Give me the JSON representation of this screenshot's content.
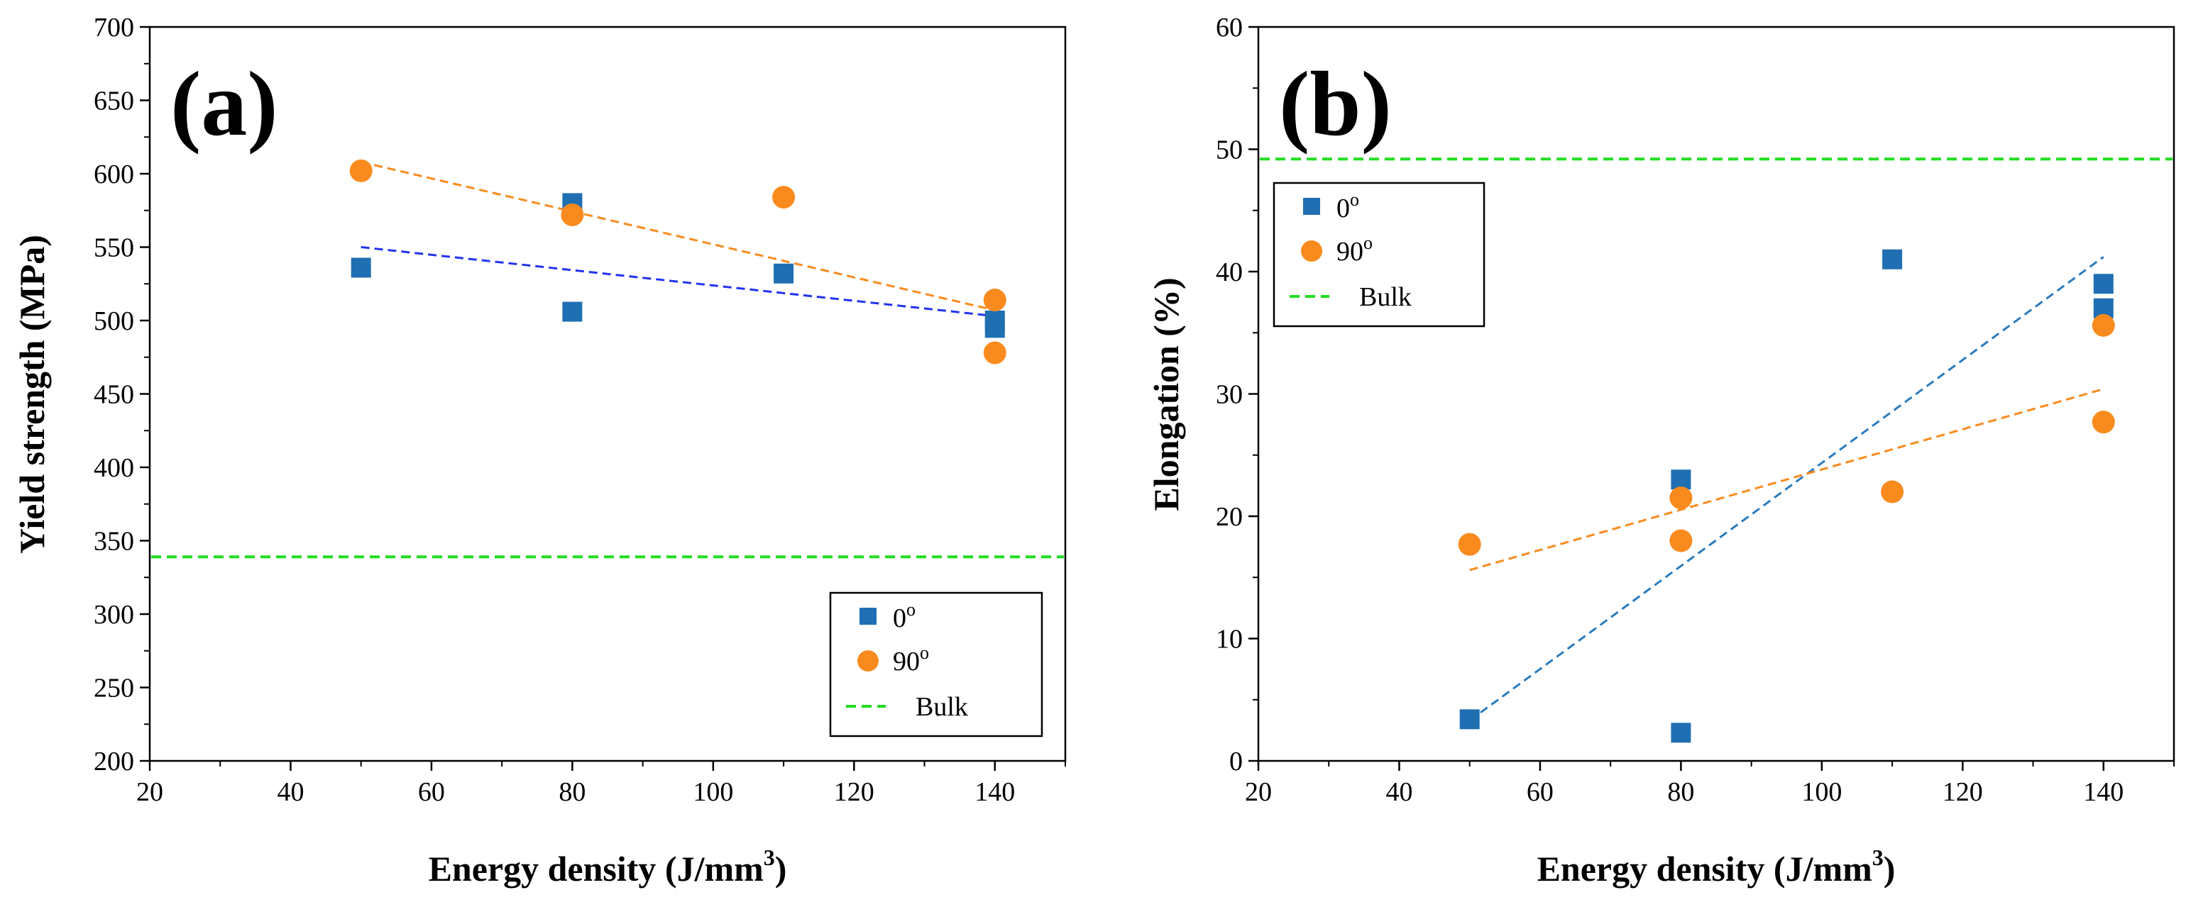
{
  "figure": {
    "background": "#ffffff",
    "colors": {
      "series_0": "#1f6fb2",
      "series_90": "#f98b1e",
      "bulk": "#22dd22",
      "fit_0_a": "#2233ee",
      "fit_0_b": "#2a7bbf",
      "fit_90": "#f98b1e"
    }
  },
  "chart_data": [
    {
      "panel_label": "(a)",
      "type": "scatter",
      "xlabel": "Energy density (J/mm",
      "xlabel_sup": "3",
      "xlabel_end": ")",
      "ylabel": "Yield strength (MPa)",
      "xlim": [
        20,
        150
      ],
      "ylim": [
        200,
        700
      ],
      "xticks": [
        20,
        40,
        60,
        80,
        100,
        120,
        140
      ],
      "yticks": [
        200,
        250,
        300,
        350,
        400,
        450,
        500,
        550,
        600,
        650,
        700
      ],
      "series": [
        {
          "name": "0",
          "name_sup": "o",
          "marker": "square",
          "color": "#1f6fb2",
          "x": [
            50,
            80,
            80,
            110,
            140,
            140
          ],
          "y": [
            536,
            506,
            580,
            532,
            500,
            495
          ]
        },
        {
          "name": "90",
          "name_sup": "o",
          "marker": "circle",
          "color": "#f98b1e",
          "x": [
            50,
            80,
            110,
            140,
            140
          ],
          "y": [
            602,
            572,
            584,
            514,
            478
          ]
        }
      ],
      "fits": [
        {
          "series": "0",
          "color": "#2233ee",
          "x": [
            50,
            140
          ],
          "y": [
            550,
            503
          ]
        },
        {
          "series": "90",
          "color": "#f98b1e",
          "x": [
            50,
            140
          ],
          "y": [
            608,
            507
          ]
        }
      ],
      "reference_lines": [
        {
          "name": "Bulk",
          "color": "#22dd22",
          "y": 339
        }
      ],
      "legend": {
        "position": "bottom-right",
        "entries": [
          "0",
          "90",
          "Bulk"
        ]
      }
    },
    {
      "panel_label": "(b)",
      "type": "scatter",
      "xlabel": "Energy density (J/mm",
      "xlabel_sup": "3",
      "xlabel_end": ")",
      "ylabel": "Elongation (%)",
      "xlim": [
        20,
        150
      ],
      "ylim": [
        0,
        60
      ],
      "xticks": [
        20,
        40,
        60,
        80,
        100,
        120,
        140
      ],
      "yticks": [
        0,
        10,
        20,
        30,
        40,
        50,
        60
      ],
      "series": [
        {
          "name": "0",
          "name_sup": "o",
          "marker": "square",
          "color": "#1f6fb2",
          "x": [
            50,
            80,
            80,
            110,
            140,
            140
          ],
          "y": [
            3.4,
            2.3,
            23,
            41,
            39,
            37
          ]
        },
        {
          "name": "90",
          "name_sup": "o",
          "marker": "circle",
          "color": "#f98b1e",
          "x": [
            50,
            80,
            80,
            110,
            140,
            140
          ],
          "y": [
            17.7,
            21.5,
            18,
            22,
            35.6,
            27.7
          ]
        }
      ],
      "fits": [
        {
          "series": "0",
          "color": "#2a7bbf",
          "x": [
            50,
            140
          ],
          "y": [
            3.3,
            41.2
          ]
        },
        {
          "series": "90",
          "color": "#f98b1e",
          "x": [
            50,
            140
          ],
          "y": [
            15.6,
            30.4
          ]
        }
      ],
      "reference_lines": [
        {
          "name": "Bulk",
          "color": "#22dd22",
          "y": 49.2
        }
      ],
      "legend": {
        "position": "top-left",
        "entries": [
          "0",
          "90",
          "Bulk"
        ]
      }
    }
  ]
}
